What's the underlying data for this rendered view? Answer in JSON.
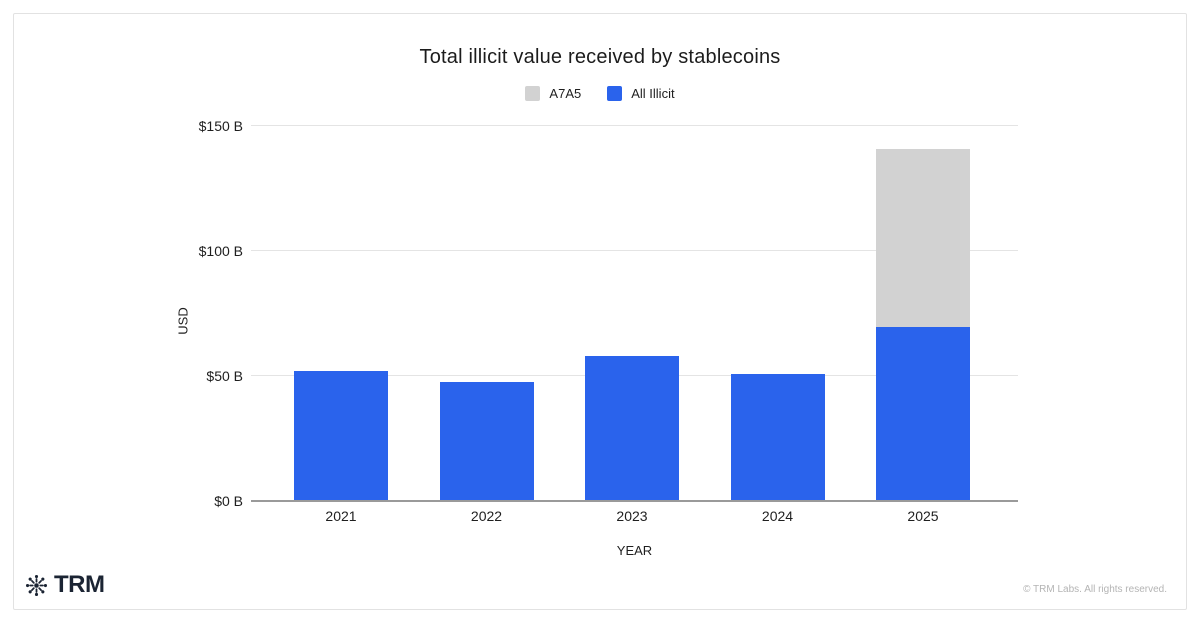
{
  "chart_data": {
    "type": "bar",
    "stacked": true,
    "title": "Total illicit value received by stablecoins",
    "categories": [
      "2021",
      "2022",
      "2023",
      "2024",
      "2025"
    ],
    "series": [
      {
        "name": "All Illicit",
        "color": "#2a63ec",
        "values": [
          52,
          47.5,
          58,
          51,
          69.5
        ]
      },
      {
        "name": "A7A5",
        "color": "#d2d2d2",
        "values": [
          0,
          0,
          0,
          0,
          71.5
        ]
      }
    ],
    "legend": [
      {
        "label": "A7A5",
        "color": "#d2d2d2"
      },
      {
        "label": "All Illicit",
        "color": "#2a63ec"
      }
    ],
    "legend_position": "top",
    "xlabel": "YEAR",
    "ylabel": "USD",
    "ylim": [
      0,
      150
    ],
    "yticks": [
      {
        "value": 0,
        "label": "$0 B"
      },
      {
        "value": 50,
        "label": "$50 B"
      },
      {
        "value": 100,
        "label": "$100 B"
      },
      {
        "value": 150,
        "label": "$150 B"
      }
    ],
    "grid": true
  },
  "footer": {
    "brand": "TRM",
    "copyright": "© TRM Labs. All rights reserved."
  }
}
